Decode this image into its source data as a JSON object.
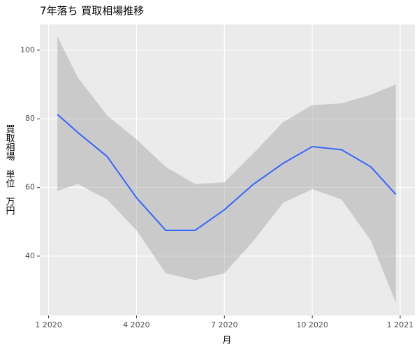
{
  "chart_data": {
    "type": "line",
    "title": "7年落ち 買取相場推移",
    "x_label": "月",
    "y_label": "買取相場　単位　万円",
    "x": [
      0.3,
      1,
      2,
      3,
      4,
      5,
      6,
      7,
      8,
      9,
      10,
      11,
      11.85
    ],
    "series": [
      {
        "color": "#3366FF",
        "values": [
          81.3,
          76,
          69,
          57,
          47.5,
          47.5,
          53.5,
          61,
          67,
          71.9,
          71,
          66,
          58
        ]
      }
    ],
    "upper": [
      104,
      92,
      81,
      74,
      66,
      61,
      61.5,
      70,
      79,
      84,
      84.5,
      87,
      90
    ],
    "lower": [
      59,
      61,
      56.5,
      47.5,
      35,
      33,
      35,
      44.5,
      55.5,
      59.5,
      56.5,
      44.5,
      26.5
    ],
    "band_color": "#999999",
    "xlim": [
      -0.3,
      12.5
    ],
    "xticks": [
      {
        "value": 0,
        "label": "1 2020"
      },
      {
        "value": 3,
        "label": "4 2020"
      },
      {
        "value": 6,
        "label": "7 2020"
      },
      {
        "value": 9,
        "label": "10 2020"
      },
      {
        "value": 12,
        "label": "1 2021"
      }
    ],
    "ylim": [
      22.7,
      107.5
    ],
    "yticks": [
      40,
      60,
      80,
      100
    ],
    "grid": true
  }
}
